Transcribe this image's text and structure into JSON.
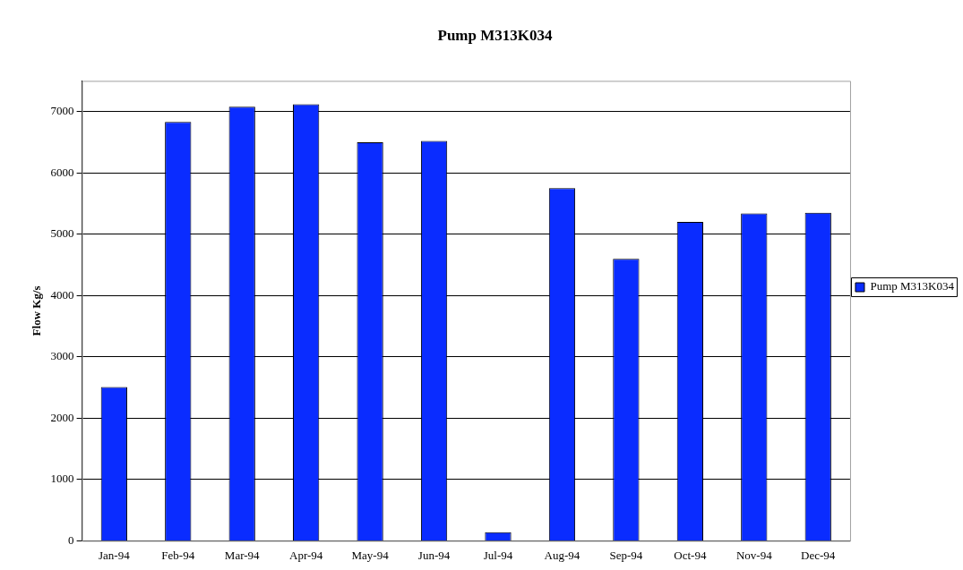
{
  "chart_data": {
    "type": "bar",
    "title": "Pump M313K034",
    "ylabel": "Flow Kg/s",
    "categories": [
      "Jan-94",
      "Feb-94",
      "Mar-94",
      "Apr-94",
      "May-94",
      "Jun-94",
      "Jul-94",
      "Aug-94",
      "Sep-94",
      "Oct-94",
      "Nov-94",
      "Dec-94"
    ],
    "series": [
      {
        "name": "Pump M313K034",
        "color": "#0a2cff",
        "values": [
          2510,
          6830,
          7080,
          7120,
          6500,
          6520,
          140,
          5750,
          4600,
          5200,
          5340,
          5350
        ]
      }
    ],
    "ylim": [
      0,
      7500
    ],
    "yticks": [
      0,
      1000,
      2000,
      3000,
      4000,
      5000,
      6000,
      7000
    ],
    "grid": "y",
    "legend": "right"
  }
}
